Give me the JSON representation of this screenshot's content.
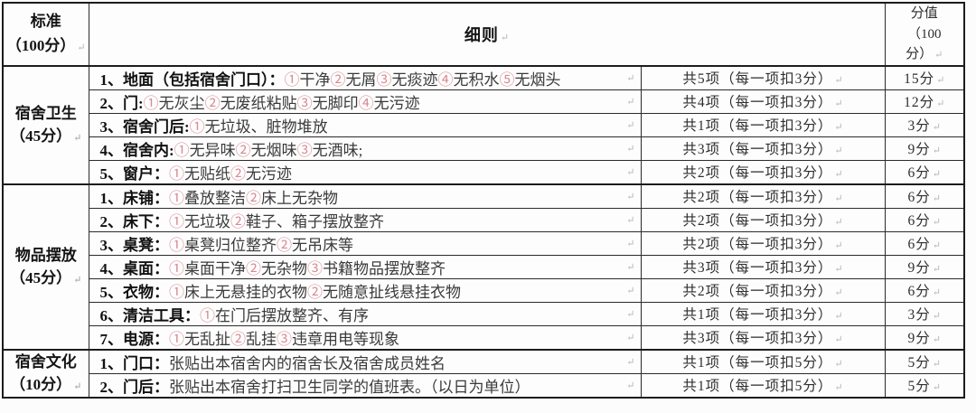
{
  "icons": {
    "paragraph_mark": "↵"
  },
  "colors": {
    "circled_number": "#d98b93",
    "border": "#1c1c1c"
  },
  "header": {
    "col_standard": "标准\n（100分）",
    "col_details": "细则",
    "col_score": "分值\n（100\n分）"
  },
  "sections": [
    {
      "name": "宿舍卫生\n（45分）",
      "rows": [
        {
          "label": "1、地面（包括宿舍门口）：",
          "items": "①干净②无屑③无痰迹④无积水⑤无烟头",
          "count": "共5项（每一项扣3分）",
          "score": "15分"
        },
        {
          "label": "2、门:",
          "items": "①无灰尘②无废纸粘贴③无脚印④无污迹",
          "count": "共4项（每一项扣3分）",
          "score": "12分"
        },
        {
          "label": "3、宿舍门后:",
          "items": "①无垃圾、脏物堆放",
          "count": "共1项（每一项扣3分）",
          "score": "3分"
        },
        {
          "label": "4、宿舍内:",
          "items": "①无异味②无烟味③无酒味;",
          "count": "共3项（每一项扣3分）",
          "score": "9分"
        },
        {
          "label": "5、窗户：",
          "items": "①无贴纸②无污迹",
          "count": "共2项（每一项扣3分）",
          "score": "6分"
        }
      ]
    },
    {
      "name": "物品摆放\n（45分）",
      "rows": [
        {
          "label": "1、床铺：",
          "items": "①叠放整洁②床上无杂物",
          "count": "共2项（每一项扣3分）",
          "score": "6分"
        },
        {
          "label": "2、床下：",
          "items": "①无垃圾②鞋子、箱子摆放整齐",
          "count": "共2项（每一项扣3分）",
          "score": "6分"
        },
        {
          "label": "3、桌凳：",
          "items": "①桌凳归位整齐②无吊床等",
          "count": "共2项（每一项扣3分）",
          "score": "6分"
        },
        {
          "label": "4、桌面：",
          "items": "①桌面干净②无杂物③书籍物品摆放整齐",
          "count": "共3项（每一项扣3分）",
          "score": "9分"
        },
        {
          "label": "5、衣物：",
          "items": "①床上无悬挂的衣物②无随意扯线悬挂衣物",
          "count": "共2项（每一项扣3分）",
          "score": "6分"
        },
        {
          "label": "6、清洁工具：",
          "items": "①在门后摆放整齐、有序",
          "count": "共1项（每一项扣3分）",
          "score": "3分"
        },
        {
          "label": "7、电源：",
          "items": "①无乱扯②乱挂③违章用电等现象",
          "count": "共3项（每一项扣3分）",
          "score": "9分"
        }
      ]
    },
    {
      "name": "宿舍文化\n（10分）",
      "rows": [
        {
          "label": "1、门口：",
          "items": "张贴出本宿舍内的宿舍长及宿舍成员姓名",
          "count": "共1项（每一项扣5分）",
          "score": "5分"
        },
        {
          "label": "2、门后：",
          "items": "张贴出本宿舍打扫卫生同学的值班表。（以日为单位）",
          "count": "共1项（每一项扣5分）",
          "score": "5分"
        }
      ]
    }
  ]
}
